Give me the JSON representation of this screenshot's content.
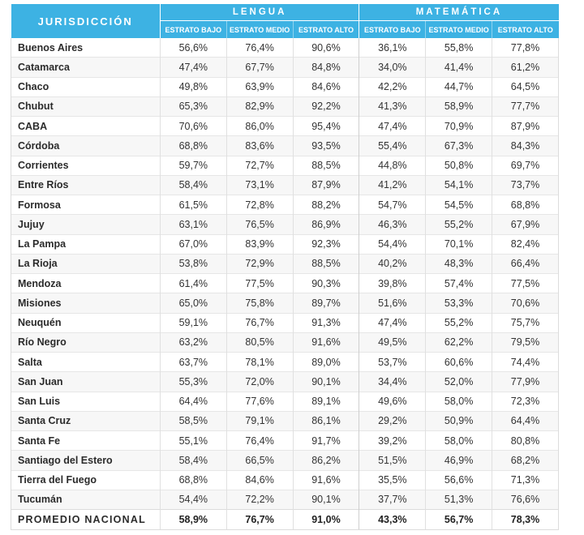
{
  "header": {
    "jurisdiction": "JURISDICCIÓN",
    "groups": [
      "LENGUA",
      "MATEMÁTICA"
    ],
    "strata": [
      "ESTRATO BAJO",
      "ESTRATO MEDIO",
      "ESTRATO ALTO"
    ]
  },
  "rows": [
    {
      "name": "Buenos Aires",
      "values": [
        "56,6%",
        "76,4%",
        "90,6%",
        "36,1%",
        "55,8%",
        "77,8%"
      ]
    },
    {
      "name": "Catamarca",
      "values": [
        "47,4%",
        "67,7%",
        "84,8%",
        "34,0%",
        "41,4%",
        "61,2%"
      ]
    },
    {
      "name": "Chaco",
      "values": [
        "49,8%",
        "63,9%",
        "84,6%",
        "42,2%",
        "44,7%",
        "64,5%"
      ]
    },
    {
      "name": "Chubut",
      "values": [
        "65,3%",
        "82,9%",
        "92,2%",
        "41,3%",
        "58,9%",
        "77,7%"
      ]
    },
    {
      "name": "CABA",
      "values": [
        "70,6%",
        "86,0%",
        "95,4%",
        "47,4%",
        "70,9%",
        "87,9%"
      ]
    },
    {
      "name": "Córdoba",
      "values": [
        "68,8%",
        "83,6%",
        "93,5%",
        "55,4%",
        "67,3%",
        "84,3%"
      ]
    },
    {
      "name": "Corrientes",
      "values": [
        "59,7%",
        "72,7%",
        "88,5%",
        "44,8%",
        "50,8%",
        "69,7%"
      ]
    },
    {
      "name": "Entre Ríos",
      "values": [
        "58,4%",
        "73,1%",
        "87,9%",
        "41,2%",
        "54,1%",
        "73,7%"
      ]
    },
    {
      "name": "Formosa",
      "values": [
        "61,5%",
        "72,8%",
        "88,2%",
        "54,7%",
        "54,5%",
        "68,8%"
      ]
    },
    {
      "name": "Jujuy",
      "values": [
        "63,1%",
        "76,5%",
        "86,9%",
        "46,3%",
        "55,2%",
        "67,9%"
      ]
    },
    {
      "name": "La Pampa",
      "values": [
        "67,0%",
        "83,9%",
        "92,3%",
        "54,4%",
        "70,1%",
        "82,4%"
      ]
    },
    {
      "name": "La Rioja",
      "values": [
        "53,8%",
        "72,9%",
        "88,5%",
        "40,2%",
        "48,3%",
        "66,4%"
      ]
    },
    {
      "name": "Mendoza",
      "values": [
        "61,4%",
        "77,5%",
        "90,3%",
        "39,8%",
        "57,4%",
        "77,5%"
      ]
    },
    {
      "name": "Misiones",
      "values": [
        "65,0%",
        "75,8%",
        "89,7%",
        "51,6%",
        "53,3%",
        "70,6%"
      ]
    },
    {
      "name": "Neuquén",
      "values": [
        "59,1%",
        "76,7%",
        "91,3%",
        "47,4%",
        "55,2%",
        "75,7%"
      ]
    },
    {
      "name": "Río Negro",
      "values": [
        "63,2%",
        "80,5%",
        "91,6%",
        "49,5%",
        "62,2%",
        "79,5%"
      ]
    },
    {
      "name": "Salta",
      "values": [
        "63,7%",
        "78,1%",
        "89,0%",
        "53,7%",
        "60,6%",
        "74,4%"
      ]
    },
    {
      "name": "San Juan",
      "values": [
        "55,3%",
        "72,0%",
        "90,1%",
        "34,4%",
        "52,0%",
        "77,9%"
      ]
    },
    {
      "name": "San Luis",
      "values": [
        "64,4%",
        "77,6%",
        "89,1%",
        "49,6%",
        "58,0%",
        "72,3%"
      ]
    },
    {
      "name": "Santa Cruz",
      "values": [
        "58,5%",
        "79,1%",
        "86,1%",
        "29,2%",
        "50,9%",
        "64,4%"
      ]
    },
    {
      "name": "Santa Fe",
      "values": [
        "55,1%",
        "76,4%",
        "91,7%",
        "39,2%",
        "58,0%",
        "80,8%"
      ]
    },
    {
      "name": "Santiago del Estero",
      "values": [
        "58,4%",
        "66,5%",
        "86,2%",
        "51,5%",
        "46,9%",
        "68,2%"
      ]
    },
    {
      "name": "Tierra del Fuego",
      "values": [
        "68,8%",
        "84,6%",
        "91,6%",
        "35,5%",
        "56,6%",
        "71,3%"
      ]
    },
    {
      "name": "Tucumán",
      "values": [
        "54,4%",
        "72,2%",
        "90,1%",
        "37,7%",
        "51,3%",
        "76,6%"
      ]
    }
  ],
  "total": {
    "name": "PROMEDIO NACIONAL",
    "values": [
      "58,9%",
      "76,7%",
      "91,0%",
      "43,3%",
      "56,7%",
      "78,3%"
    ]
  }
}
